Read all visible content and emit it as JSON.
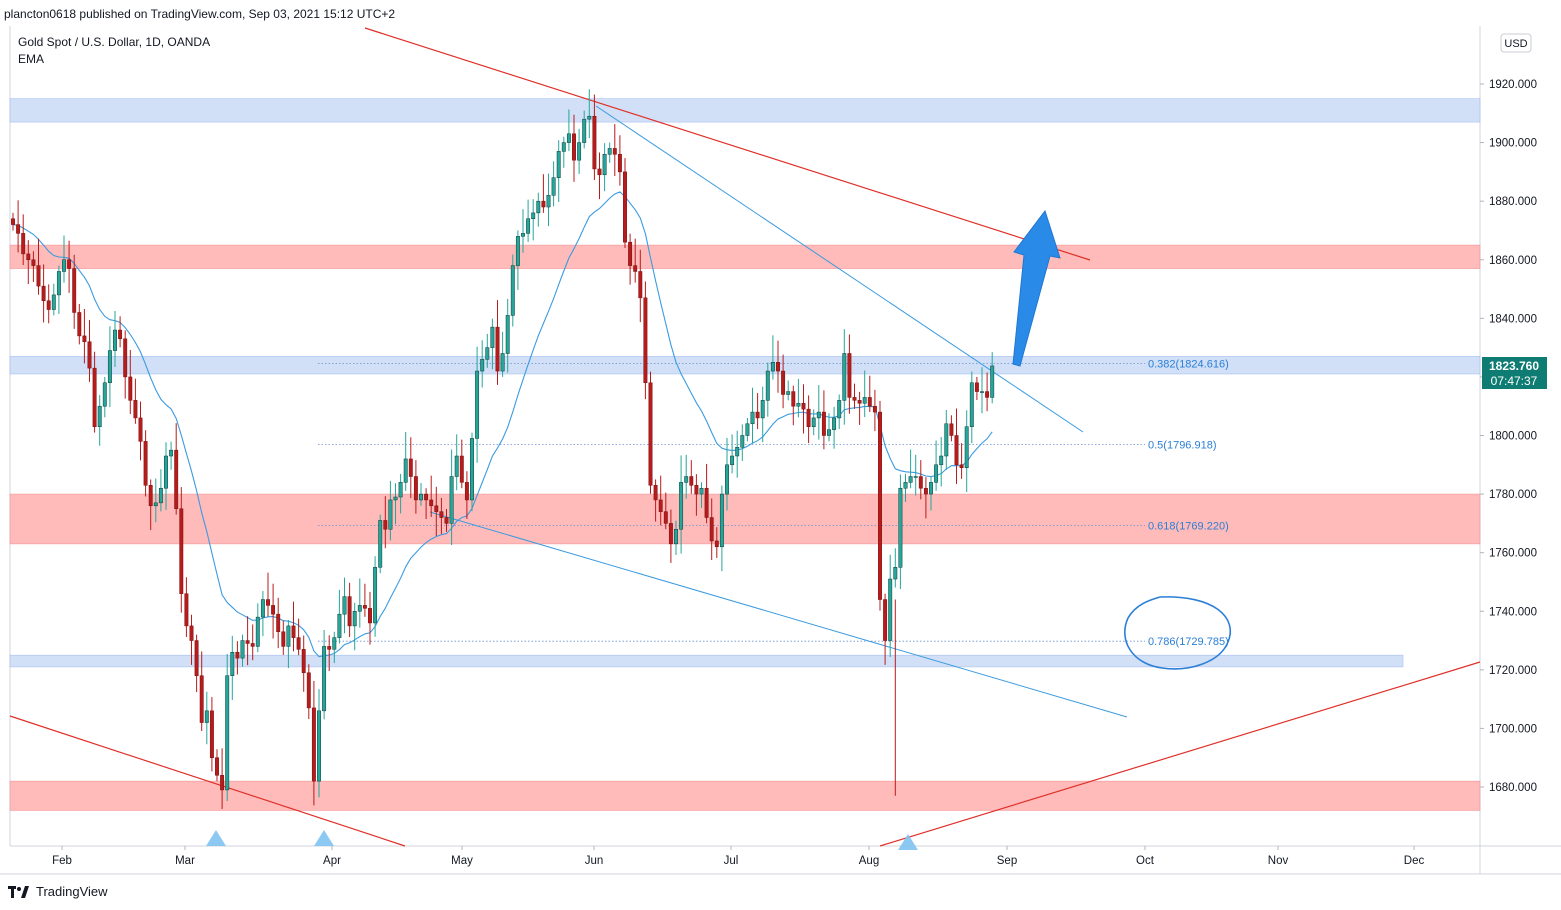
{
  "header": {
    "published": "plancton0618 published on TradingView.com, Sep 03, 2021 15:12 UTC+2"
  },
  "legend": {
    "symbol": "Gold Spot / U.S. Dollar, 1D, OANDA",
    "indicator": "EMA"
  },
  "currency": "USD",
  "price_label": {
    "value": "1823.760",
    "countdown": "07:47:37"
  },
  "footer": {
    "brand": "TradingView"
  },
  "colors": {
    "up": "#26a69a",
    "down": "#b71c1c",
    "dark": "#0a2a2a",
    "ema": "#3b9be0",
    "trend_red": "#e0302a",
    "trend_blue": "#3b9be0",
    "zone_red": "#ffb3b3",
    "zone_blue": "#cddcf7",
    "arrow": "#2a8ae8"
  },
  "chart_data": {
    "type": "candlestick",
    "title": "Gold Spot / U.S. Dollar, 1D, OANDA",
    "ylim": [
      1660,
      1930
    ],
    "y_ticks": [
      1680,
      1700,
      1720,
      1740,
      1760,
      1780,
      1800,
      1820,
      1840,
      1860,
      1880,
      1900,
      1920
    ],
    "x_ticks": [
      "Feb",
      "Mar",
      "Apr",
      "May",
      "Jun",
      "Jul",
      "Aug",
      "Sep",
      "Oct",
      "Nov",
      "Dec"
    ],
    "fib_levels": [
      {
        "label": "0.382(1824.616)",
        "value": 1824.616
      },
      {
        "label": "0.5(1796.918)",
        "value": 1796.918
      },
      {
        "label": "0.618(1769.220)",
        "value": 1769.22
      },
      {
        "label": "0.786(1729.785)",
        "value": 1729.785
      }
    ],
    "zones": [
      {
        "kind": "blue",
        "low": 1907,
        "high": 1915
      },
      {
        "kind": "red",
        "low": 1857,
        "high": 1865
      },
      {
        "kind": "blue",
        "low": 1821,
        "high": 1827
      },
      {
        "kind": "red",
        "low": 1763,
        "high": 1780
      },
      {
        "kind": "blue",
        "low": 1721,
        "high": 1725
      },
      {
        "kind": "red",
        "low": 1672,
        "high": 1682
      }
    ],
    "series_close": [
      1872,
      1869,
      1862,
      1860,
      1858,
      1851,
      1846,
      1843,
      1848,
      1856,
      1860,
      1857,
      1842,
      1834,
      1832,
      1823,
      1803,
      1810,
      1818,
      1829,
      1836,
      1833,
      1820,
      1812,
      1806,
      1798,
      1783,
      1776,
      1777,
      1782,
      1793,
      1795,
      1775,
      1746,
      1735,
      1730,
      1718,
      1702,
      1706,
      1690,
      1684,
      1679,
      1718,
      1726,
      1724,
      1730,
      1729,
      1728,
      1738,
      1744,
      1742,
      1739,
      1733,
      1728,
      1735,
      1731,
      1727,
      1719,
      1707,
      1682,
      1706,
      1728,
      1727,
      1731,
      1739,
      1745,
      1735,
      1740,
      1742,
      1741,
      1736,
      1755,
      1771,
      1768,
      1778,
      1779,
      1784,
      1792,
      1786,
      1778,
      1780,
      1778,
      1776,
      1774,
      1772,
      1770,
      1786,
      1793,
      1784,
      1778,
      1799,
      1822,
      1826,
      1830,
      1837,
      1822,
      1828,
      1841,
      1858,
      1868,
      1869,
      1874,
      1876,
      1880,
      1878,
      1882,
      1888,
      1897,
      1900,
      1903,
      1894,
      1900,
      1908,
      1909,
      1891,
      1889,
      1896,
      1898,
      1896,
      1890,
      1866,
      1858,
      1856,
      1847,
      1818,
      1783,
      1778,
      1774,
      1770,
      1763,
      1768,
      1784,
      1786,
      1783,
      1780,
      1782,
      1772,
      1764,
      1762,
      1780,
      1790,
      1793,
      1796,
      1800,
      1804,
      1808,
      1806,
      1812,
      1822,
      1825,
      1822,
      1814,
      1815,
      1810,
      1811,
      1809,
      1803,
      1806,
      1808,
      1800,
      1802,
      1806,
      1812,
      1828,
      1813,
      1812,
      1811,
      1813,
      1810,
      1808,
      1744,
      1730,
      1751,
      1755,
      1782,
      1784,
      1786,
      1786,
      1782,
      1780,
      1784,
      1790,
      1793,
      1804,
      1800,
      1790,
      1789,
      1803,
      1818,
      1815,
      1815,
      1813,
      1823.76
    ],
    "ema_label": "EMA"
  }
}
